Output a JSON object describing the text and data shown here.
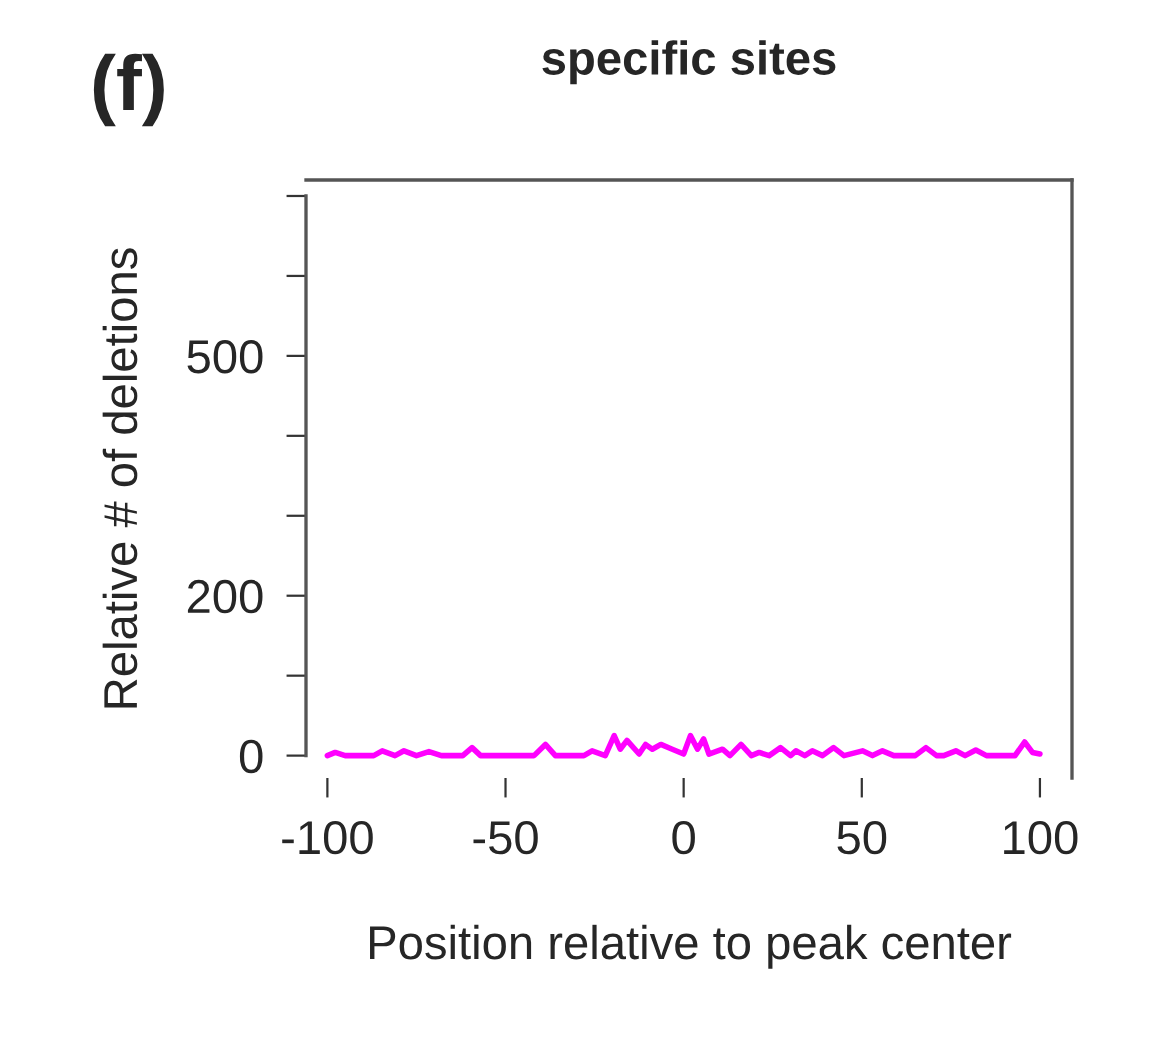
{
  "chart_data": {
    "type": "line",
    "title": "specific sites",
    "xlabel": "Position relative to peak center",
    "ylabel": "Relative # of deletions",
    "annotations": [
      "(f)"
    ],
    "xlim": [
      -106,
      109
    ],
    "ylim": [
      -28,
      720
    ],
    "xticks": [
      -100,
      -50,
      0,
      50,
      100
    ],
    "yticks": [
      0,
      {
        "value": 100,
        "label": null
      },
      200,
      {
        "value": 300,
        "label": null
      },
      {
        "value": 400,
        "label": null
      },
      500,
      {
        "value": 600,
        "label": null
      },
      {
        "value": 700,
        "label": null
      }
    ],
    "grid": false,
    "marker": "none",
    "line_style": "solid",
    "series": [
      {
        "color": "#ff00ff",
        "x": [
          -100,
          -97.8,
          -95,
          -87,
          -84.6,
          -81,
          -78.5,
          -75,
          -71.5,
          -68,
          -62,
          -59.4,
          -57,
          -42,
          -38.8,
          -36,
          -28,
          -25.7,
          -22,
          -19.5,
          -17.8,
          -15.9,
          -12.5,
          -10.7,
          -8.8,
          -6.4,
          -3.2,
          0,
          1.9,
          3.9,
          5.6,
          7.1,
          10.9,
          13,
          16.1,
          19,
          21.2,
          24,
          27.2,
          30,
          31.5,
          34,
          36.1,
          39,
          42.1,
          45,
          50.2,
          53,
          55.8,
          59,
          65,
          68,
          71,
          73,
          76.4,
          79,
          82,
          85,
          93,
          95.7,
          97.9,
          100
        ],
        "values": [
          0,
          4,
          0,
          0,
          6,
          0,
          6,
          0,
          5,
          0,
          0,
          10,
          0,
          0,
          14,
          0,
          0,
          6,
          0,
          25,
          8,
          19,
          2,
          14,
          8,
          14,
          8,
          2,
          25,
          8,
          21,
          2,
          8,
          0,
          14,
          0,
          4,
          0,
          10,
          0,
          6,
          0,
          6,
          0,
          10,
          0,
          6,
          0,
          6,
          0,
          0,
          10,
          0,
          0,
          6,
          0,
          7,
          0,
          0,
          17,
          4,
          2
        ]
      }
    ]
  }
}
